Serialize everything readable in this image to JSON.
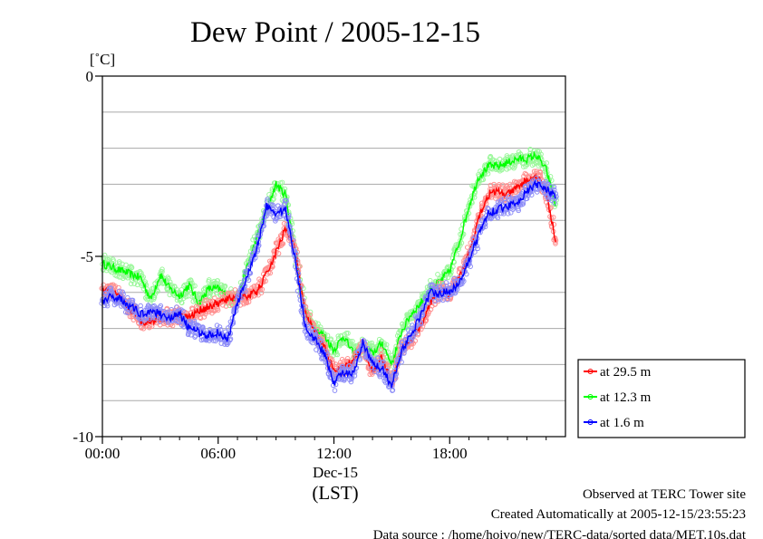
{
  "chart_data": {
    "type": "line",
    "title": "Dew Point / 2005-12-15",
    "ylabel": "[˚C]",
    "xlabel": "(LST)",
    "x_date_label": "Dec-15",
    "xlim": [
      0,
      24
    ],
    "ylim": [
      -10,
      0
    ],
    "x_ticks": [
      {
        "value": 0,
        "label": "00:00"
      },
      {
        "value": 6,
        "label": "06:00"
      },
      {
        "value": 12,
        "label": "12:00"
      },
      {
        "value": 18,
        "label": "18:00"
      }
    ],
    "y_ticks": [
      {
        "value": 0,
        "label": "0"
      },
      {
        "value": -5,
        "label": "-5"
      },
      {
        "value": -10,
        "label": "-10"
      }
    ],
    "y_grid": [
      -1,
      -2,
      -3,
      -4,
      -5,
      -6,
      -7,
      -8,
      -9
    ],
    "grid": true,
    "legend_position": "bottom-right, outside plot",
    "series": [
      {
        "name": "at 29.5 m",
        "color": "#ff0000",
        "light_color": "#ff9090",
        "x": [
          0,
          0.5,
          1,
          1.5,
          2,
          2.5,
          3,
          3.5,
          4,
          4.5,
          5,
          5.5,
          6,
          6.5,
          7,
          7.5,
          8,
          8.5,
          9,
          9.5,
          10,
          10.5,
          11,
          11.5,
          12,
          12.5,
          13,
          13.5,
          14,
          14.5,
          15,
          15.5,
          16,
          16.5,
          17,
          17.5,
          18,
          18.5,
          19,
          19.5,
          20,
          20.5,
          21,
          21.5,
          22,
          22.5,
          23,
          23.5
        ],
        "y": [
          -5.9,
          -6.0,
          -6.2,
          -6.5,
          -6.8,
          -6.8,
          -6.7,
          -6.7,
          -6.6,
          -6.7,
          -6.5,
          -6.4,
          -6.3,
          -6.2,
          -6.1,
          -6.1,
          -6.0,
          -5.5,
          -4.9,
          -4.2,
          -4.8,
          -6.6,
          -7.1,
          -7.5,
          -8.2,
          -8.1,
          -7.9,
          -7.5,
          -8.2,
          -7.8,
          -8.5,
          -7.6,
          -7.3,
          -6.9,
          -6.3,
          -5.9,
          -6.1,
          -5.6,
          -4.9,
          -3.9,
          -3.3,
          -3.2,
          -3.3,
          -3.1,
          -2.9,
          -2.8,
          -3.2,
          -4.6
        ]
      },
      {
        "name": "at 12.3 m",
        "color": "#00ff00",
        "light_color": "#9cf79c",
        "x": [
          0,
          0.5,
          1,
          1.5,
          2,
          2.5,
          3,
          3.5,
          4,
          4.5,
          5,
          5.5,
          6,
          6.5,
          7,
          7.5,
          8,
          8.5,
          9,
          9.5,
          10,
          10.5,
          11,
          11.5,
          12,
          12.5,
          13,
          13.5,
          14,
          14.5,
          15,
          15.5,
          16,
          16.5,
          17,
          17.5,
          18,
          18.5,
          19,
          19.5,
          20,
          20.5,
          21,
          21.5,
          22,
          22.5,
          23,
          23.5
        ],
        "y": [
          -5.2,
          -5.3,
          -5.4,
          -5.5,
          -5.6,
          -6.2,
          -5.5,
          -5.9,
          -6.1,
          -5.8,
          -6.3,
          -5.9,
          -5.9,
          -6.1,
          -6.2,
          -5.3,
          -4.5,
          -3.7,
          -3.0,
          -3.3,
          -4.9,
          -6.5,
          -7.0,
          -7.2,
          -7.6,
          -7.2,
          -7.7,
          -7.5,
          -7.7,
          -7.4,
          -8.0,
          -7.1,
          -6.6,
          -6.3,
          -5.9,
          -5.7,
          -5.4,
          -4.6,
          -3.6,
          -2.8,
          -2.5,
          -2.5,
          -2.4,
          -2.3,
          -2.3,
          -2.2,
          -2.6,
          -3.6
        ]
      },
      {
        "name": "at 1.6 m",
        "color": "#0000ff",
        "light_color": "#8c8cf7",
        "x": [
          0,
          0.5,
          1,
          1.5,
          2,
          2.5,
          3,
          3.5,
          4,
          4.5,
          5,
          5.5,
          6,
          6.5,
          7,
          7.5,
          8,
          8.5,
          9,
          9.5,
          10,
          10.5,
          11,
          11.5,
          12,
          12.5,
          13,
          13.5,
          14,
          14.5,
          15,
          15.5,
          16,
          16.5,
          17,
          17.5,
          18,
          18.5,
          19,
          19.5,
          20,
          20.5,
          21,
          21.5,
          22,
          22.5,
          23,
          23.5
        ],
        "y": [
          -6.3,
          -6.1,
          -6.2,
          -6.4,
          -6.6,
          -6.5,
          -6.6,
          -6.7,
          -6.6,
          -7.0,
          -7.1,
          -7.2,
          -7.1,
          -7.3,
          -6.3,
          -5.6,
          -4.8,
          -3.6,
          -3.8,
          -3.7,
          -5.1,
          -6.9,
          -7.3,
          -7.7,
          -8.5,
          -8.2,
          -8.3,
          -7.4,
          -8.0,
          -8.1,
          -8.6,
          -7.6,
          -7.2,
          -6.6,
          -6.0,
          -6.0,
          -6.0,
          -5.7,
          -5.1,
          -4.4,
          -3.8,
          -3.7,
          -3.6,
          -3.5,
          -3.2,
          -3.0,
          -3.1,
          -3.4
        ]
      }
    ]
  },
  "footer": {
    "line1": "Observed at TERC Tower site",
    "line2": "Created Automatically at 2005-12-15/23:55:23",
    "line3": "Data source : /home/hoivo/new/TERC-data/sorted  data/MET.10s.dat"
  }
}
